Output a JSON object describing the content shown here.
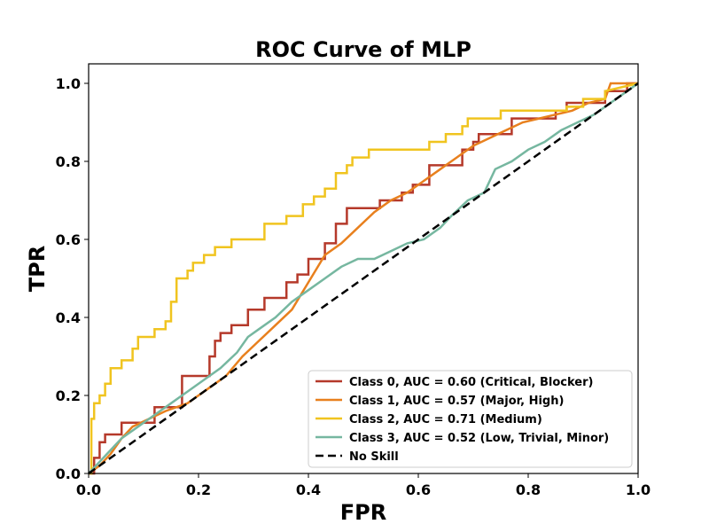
{
  "chart_data": {
    "type": "line",
    "title": "ROC Curve of MLP",
    "xlabel": "FPR",
    "ylabel": "TPR",
    "xlim": [
      0,
      1
    ],
    "ylim": [
      0,
      1.05
    ],
    "xticks": [
      0.0,
      0.2,
      0.4,
      0.6,
      0.8,
      1.0
    ],
    "yticks": [
      0.0,
      0.2,
      0.4,
      0.6,
      0.8,
      1.0
    ],
    "xtick_labels": [
      "0.0",
      "0.2",
      "0.4",
      "0.6",
      "0.8",
      "1.0"
    ],
    "ytick_labels": [
      "0.0",
      "0.2",
      "0.4",
      "0.6",
      "0.8",
      "1.0"
    ],
    "grid": false,
    "legend_position": "lower-right",
    "series": [
      {
        "name": "Class 0, AUC = 0.60 (Critical, Blocker)",
        "color": "#b5392a",
        "style": "solid",
        "x": [
          0,
          0.01,
          0.01,
          0.02,
          0.02,
          0.03,
          0.03,
          0.06,
          0.06,
          0.12,
          0.12,
          0.17,
          0.17,
          0.22,
          0.22,
          0.23,
          0.23,
          0.24,
          0.24,
          0.26,
          0.26,
          0.29,
          0.29,
          0.32,
          0.32,
          0.36,
          0.36,
          0.38,
          0.38,
          0.4,
          0.4,
          0.43,
          0.43,
          0.45,
          0.45,
          0.47,
          0.47,
          0.53,
          0.53,
          0.57,
          0.57,
          0.59,
          0.59,
          0.62,
          0.62,
          0.68,
          0.68,
          0.7,
          0.7,
          0.71,
          0.71,
          0.77,
          0.77,
          0.85,
          0.85,
          0.87,
          0.87,
          0.94,
          0.94,
          0.98,
          0.98,
          1.0
        ],
        "y": [
          0,
          0,
          0.04,
          0.04,
          0.08,
          0.08,
          0.1,
          0.1,
          0.13,
          0.13,
          0.17,
          0.17,
          0.25,
          0.25,
          0.3,
          0.3,
          0.34,
          0.34,
          0.36,
          0.36,
          0.38,
          0.38,
          0.42,
          0.42,
          0.45,
          0.45,
          0.49,
          0.49,
          0.51,
          0.51,
          0.55,
          0.55,
          0.59,
          0.59,
          0.64,
          0.64,
          0.68,
          0.68,
          0.7,
          0.7,
          0.72,
          0.72,
          0.74,
          0.74,
          0.79,
          0.79,
          0.83,
          0.83,
          0.85,
          0.85,
          0.87,
          0.87,
          0.91,
          0.91,
          0.93,
          0.93,
          0.95,
          0.95,
          0.98,
          0.98,
          1.0,
          1.0
        ]
      },
      {
        "name": "Class 1, AUC = 0.57 (Major, High)",
        "color": "#e8801e",
        "style": "solid",
        "x": [
          0,
          0.02,
          0.04,
          0.06,
          0.08,
          0.11,
          0.14,
          0.18,
          0.22,
          0.25,
          0.28,
          0.31,
          0.34,
          0.37,
          0.4,
          0.43,
          0.46,
          0.49,
          0.52,
          0.55,
          0.58,
          0.61,
          0.64,
          0.67,
          0.7,
          0.73,
          0.76,
          0.79,
          0.82,
          0.85,
          0.88,
          0.91,
          0.94,
          0.95,
          0.97,
          1.0
        ],
        "y": [
          0,
          0.02,
          0.05,
          0.09,
          0.12,
          0.14,
          0.16,
          0.18,
          0.22,
          0.25,
          0.3,
          0.34,
          0.38,
          0.42,
          0.49,
          0.56,
          0.59,
          0.63,
          0.67,
          0.7,
          0.72,
          0.75,
          0.78,
          0.81,
          0.84,
          0.86,
          0.88,
          0.9,
          0.91,
          0.92,
          0.93,
          0.95,
          0.96,
          1.0,
          1.0,
          1.0
        ]
      },
      {
        "name": "Class 2, AUC = 0.71 (Medium)",
        "color": "#f0c41f",
        "style": "solid",
        "x": [
          0,
          0.005,
          0.005,
          0.01,
          0.01,
          0.02,
          0.02,
          0.03,
          0.03,
          0.04,
          0.04,
          0.06,
          0.06,
          0.08,
          0.08,
          0.09,
          0.09,
          0.12,
          0.12,
          0.14,
          0.14,
          0.15,
          0.15,
          0.16,
          0.16,
          0.18,
          0.18,
          0.19,
          0.19,
          0.21,
          0.21,
          0.23,
          0.23,
          0.26,
          0.26,
          0.32,
          0.32,
          0.36,
          0.36,
          0.39,
          0.39,
          0.41,
          0.41,
          0.43,
          0.43,
          0.45,
          0.45,
          0.47,
          0.47,
          0.48,
          0.48,
          0.51,
          0.51,
          0.62,
          0.62,
          0.65,
          0.65,
          0.68,
          0.68,
          0.69,
          0.69,
          0.75,
          0.75,
          0.87,
          0.87,
          0.9,
          0.9,
          0.94,
          0.94,
          1.0
        ],
        "y": [
          0,
          0,
          0.14,
          0.14,
          0.18,
          0.18,
          0.2,
          0.2,
          0.23,
          0.23,
          0.27,
          0.27,
          0.29,
          0.29,
          0.32,
          0.32,
          0.35,
          0.35,
          0.37,
          0.37,
          0.39,
          0.39,
          0.44,
          0.44,
          0.5,
          0.5,
          0.52,
          0.52,
          0.54,
          0.54,
          0.56,
          0.56,
          0.58,
          0.58,
          0.6,
          0.6,
          0.64,
          0.64,
          0.66,
          0.66,
          0.69,
          0.69,
          0.71,
          0.71,
          0.73,
          0.73,
          0.77,
          0.77,
          0.79,
          0.79,
          0.81,
          0.81,
          0.83,
          0.83,
          0.85,
          0.85,
          0.87,
          0.87,
          0.89,
          0.89,
          0.91,
          0.91,
          0.93,
          0.93,
          0.94,
          0.94,
          0.96,
          0.96,
          0.98,
          1.0
        ]
      },
      {
        "name": "Class 3, AUC = 0.52 (Low, Trivial, Minor)",
        "color": "#76b7a0",
        "style": "solid",
        "x": [
          0,
          0.02,
          0.04,
          0.06,
          0.09,
          0.12,
          0.15,
          0.18,
          0.21,
          0.24,
          0.27,
          0.29,
          0.31,
          0.34,
          0.37,
          0.4,
          0.43,
          0.46,
          0.49,
          0.52,
          0.55,
          0.58,
          0.61,
          0.64,
          0.66,
          0.69,
          0.72,
          0.74,
          0.77,
          0.8,
          0.83,
          0.86,
          0.89,
          0.92,
          0.95,
          0.98,
          1.0
        ],
        "y": [
          0,
          0.03,
          0.06,
          0.09,
          0.12,
          0.15,
          0.18,
          0.21,
          0.24,
          0.27,
          0.31,
          0.35,
          0.37,
          0.4,
          0.44,
          0.47,
          0.5,
          0.53,
          0.55,
          0.55,
          0.57,
          0.59,
          0.6,
          0.63,
          0.66,
          0.7,
          0.72,
          0.78,
          0.8,
          0.83,
          0.85,
          0.88,
          0.9,
          0.92,
          0.95,
          0.98,
          1.0
        ]
      },
      {
        "name": "No Skill",
        "color": "#000000",
        "style": "dashed",
        "x": [
          0,
          1
        ],
        "y": [
          0,
          1
        ]
      }
    ]
  }
}
